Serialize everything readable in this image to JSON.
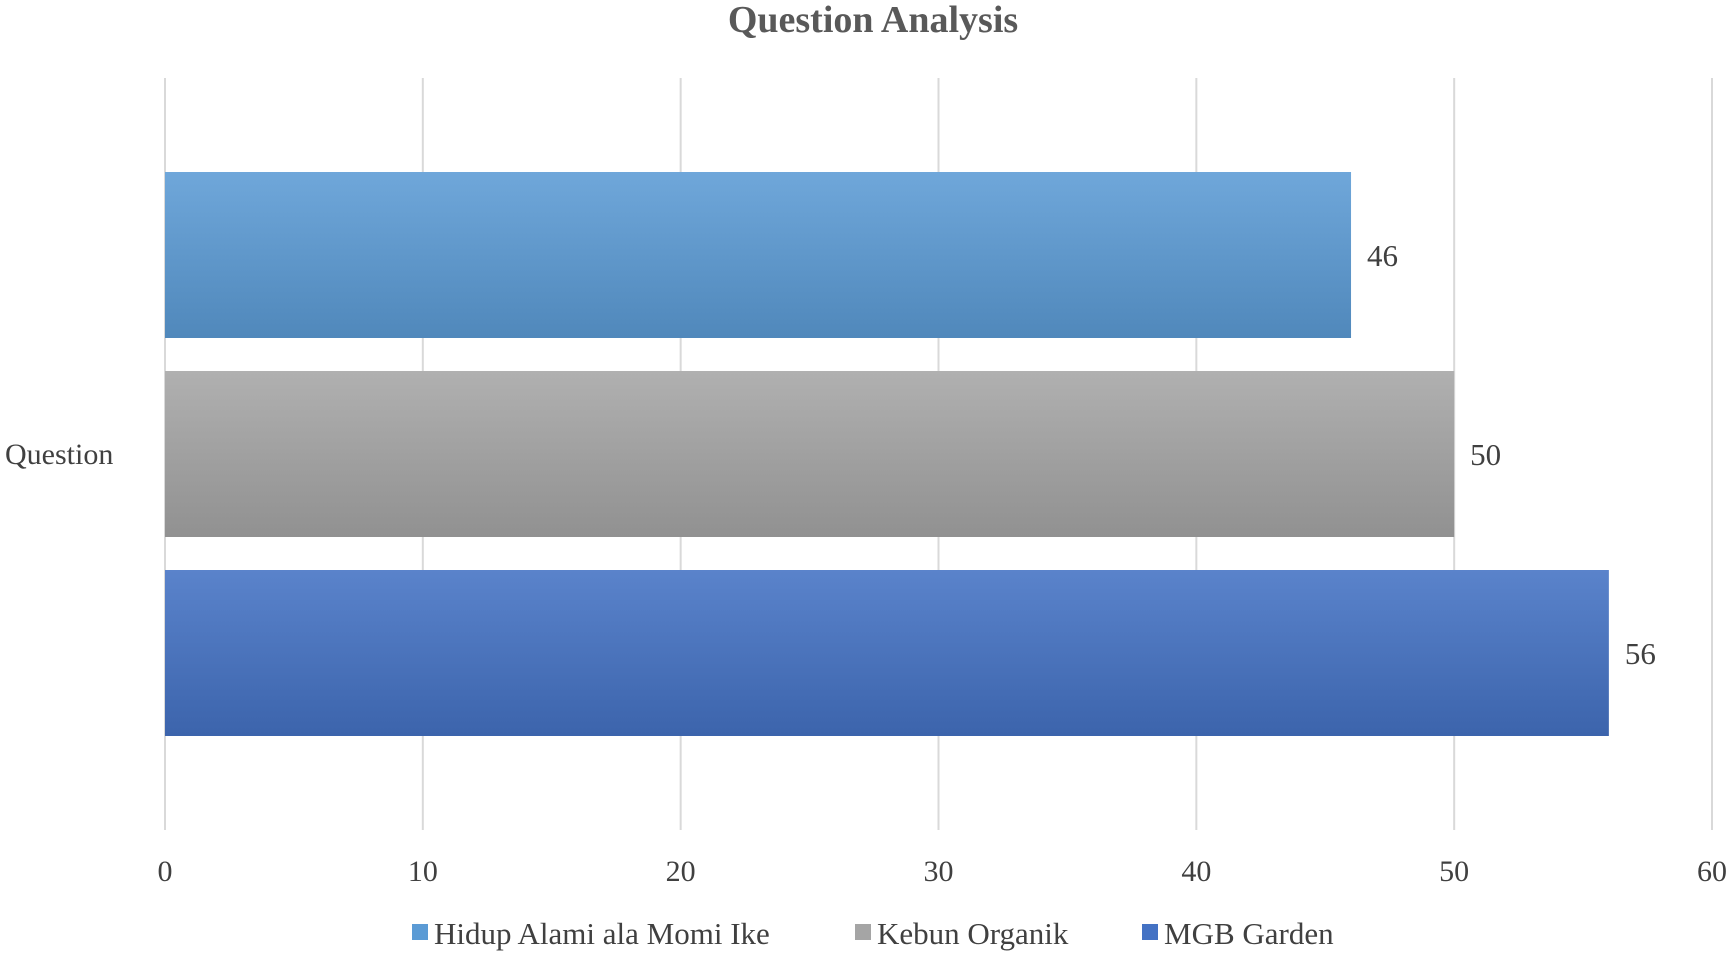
{
  "chart_data": {
    "type": "bar",
    "orientation": "horizontal",
    "title": "Question Analysis",
    "categories": [
      "Question"
    ],
    "series": [
      {
        "name": "Hidup Alami ala Momi Ike",
        "values": [
          46
        ],
        "color": "#5b9bd5"
      },
      {
        "name": "Kebun Organik",
        "values": [
          50
        ],
        "color": "#a5a5a5"
      },
      {
        "name": "MGB Garden",
        "values": [
          56
        ],
        "color": "#4472c4"
      }
    ],
    "xlim": [
      0,
      60
    ],
    "xticks": [
      "0",
      "10",
      "20",
      "30",
      "40",
      "50",
      "60"
    ],
    "grid": true,
    "legend_position": "bottom",
    "data_labels": true
  }
}
